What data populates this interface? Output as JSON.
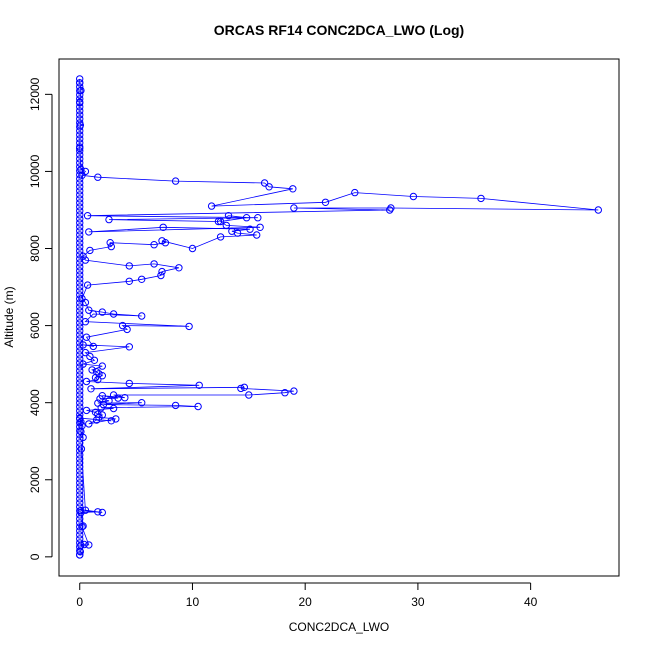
{
  "chart_data": {
    "type": "scatter",
    "title": "ORCAS RF14 CONC2DCA_LWO (Log)",
    "xlabel": "CONC2DCA_LWO",
    "ylabel": "Altitude (m)",
    "xlim": [
      -1.84,
      47.84
    ],
    "ylim": [
      -497,
      12917
    ],
    "x_ticks": [
      0,
      10,
      20,
      30,
      40
    ],
    "y_ticks": [
      0,
      2000,
      4000,
      6000,
      8000,
      10000,
      12000
    ],
    "grid": false,
    "legend": "none",
    "color": "#0000ff",
    "series": [
      {
        "x": [
          0,
          0.05,
          0.4,
          0.1,
          0.8,
          0.2,
          0.3,
          0.1,
          1.6,
          0.1,
          2.0,
          0.5,
          0.15,
          0.3,
          0.1,
          0.2,
          0.1,
          0,
          2.8,
          1.5,
          0.8,
          3.2,
          1.7,
          2.0,
          1.6,
          1.4,
          0.6,
          3.0,
          1.9,
          10.5,
          8.5,
          2.1,
          5.5,
          1.6,
          2.6,
          1.8,
          3.4,
          2.0,
          4.0,
          3.0,
          15.0,
          18.2,
          19.0,
          14.3,
          14.6,
          1.0,
          10.6,
          4.4,
          0.6,
          1.6,
          1.4,
          2.0,
          1.7,
          1.5,
          1.1,
          2.0,
          0.3,
          1.3,
          0.9,
          0.5,
          4.4,
          0.3,
          1.2,
          0.6,
          4.2,
          3.8,
          9.7,
          0.5,
          1.2,
          5.5,
          3.0,
          2.0,
          0.8,
          0.5,
          0.2,
          0.7,
          4.4,
          5.5,
          7.2,
          7.3,
          8.8,
          6.6,
          4.4,
          0.5,
          0.3,
          0.9,
          2.8,
          2.7,
          6.6,
          7.6,
          7.3,
          10.0,
          12.5,
          15.7,
          14.0,
          13.5,
          15.1,
          7.4,
          0.8,
          16.0,
          13.0,
          12.5,
          14.8,
          13.2,
          12.3,
          2.6,
          15.8,
          0.7,
          27.5,
          19.0,
          27.6,
          46.0,
          35.6,
          29.6,
          24.4,
          21.8,
          11.7,
          18.9,
          16.8,
          16.4,
          8.5,
          1.6,
          0.2,
          0.5,
          0.1,
          0,
          0.05,
          0,
          0.1,
          0,
          0
        ],
        "y": [
          50,
          130,
          320,
          300,
          310,
          780,
          800,
          1150,
          1170,
          1200,
          1150,
          1210,
          2800,
          3100,
          3250,
          3400,
          3500,
          3600,
          3530,
          3550,
          3450,
          3580,
          3620,
          3680,
          3700,
          3750,
          3800,
          3850,
          3870,
          3900,
          3930,
          3950,
          4000,
          3990,
          4050,
          4100,
          4120,
          4180,
          4130,
          4200,
          4200,
          4260,
          4300,
          4370,
          4400,
          4360,
          4450,
          4500,
          4550,
          4600,
          4650,
          4700,
          4750,
          4800,
          4850,
          4950,
          5000,
          5100,
          5200,
          5300,
          5450,
          5500,
          5460,
          5700,
          5900,
          6000,
          5980,
          6100,
          6300,
          6250,
          6300,
          6350,
          6400,
          6600,
          6700,
          7050,
          7150,
          7200,
          7300,
          7400,
          7500,
          7600,
          7550,
          7700,
          7800,
          7950,
          8050,
          8150,
          8100,
          8150,
          8200,
          8000,
          8300,
          8350,
          8400,
          8450,
          8500,
          8550,
          8430,
          8550,
          8600,
          8700,
          8800,
          8850,
          8700,
          8750,
          8800,
          8850,
          9000,
          9050,
          9050,
          9000,
          9300,
          9350,
          9450,
          9200,
          9100,
          9550,
          9600,
          9700,
          9750,
          9850,
          9900,
          10000,
          10050,
          10600,
          11200,
          11800,
          12100,
          12300,
          12400
        ]
      }
    ]
  }
}
